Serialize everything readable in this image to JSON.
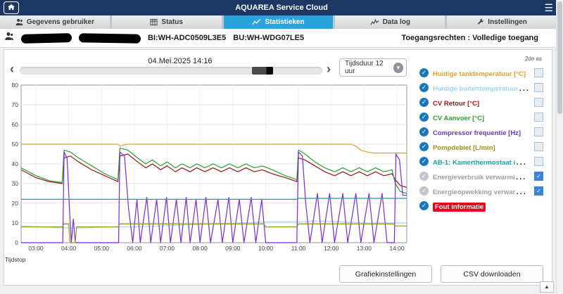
{
  "app": {
    "title": "AQUAREA Service Cloud"
  },
  "icons": {
    "left_arrow": "‹",
    "right_arrow": "›",
    "dropdown": "▾",
    "hamburger": "☰",
    "scroll_top": "▲",
    "check": "✓"
  },
  "tabs": [
    {
      "label": "Gegevens gebruiker",
      "icon": "user-icon",
      "active": false
    },
    {
      "label": "Status",
      "icon": "status-icon",
      "active": false
    },
    {
      "label": "Statistieken",
      "icon": "stats-icon",
      "active": true
    },
    {
      "label": "Data log",
      "icon": "datalog-icon",
      "active": false
    },
    {
      "label": "Instellingen",
      "icon": "settings-icon",
      "active": false
    }
  ],
  "user_row": {
    "bi": "BI:WH-ADC0509L3E5",
    "bu": "BU:WH-WDG07LE5",
    "access": "Toegangsrechten : Volledige toegang"
  },
  "controls": {
    "datetime": "04.Mei.2025 14:16",
    "duration_label": "Tijdsduur 12 uur"
  },
  "legend": {
    "second_axis_header": "2de as",
    "items": [
      {
        "label": "Huidige tanktemperatuur [°C]",
        "color": "#e0a32e",
        "checked": true,
        "axis2": "empty"
      },
      {
        "label": "Huidige buitentemperatuur [°C]",
        "color": "#9fd4f5",
        "checked": true,
        "axis2": "empty"
      },
      {
        "label": "CV Retour [°C]",
        "color": "#9e1414",
        "checked": true,
        "axis2": "empty"
      },
      {
        "label": "CV Aanvoer [°C]",
        "color": "#2f9e2f",
        "checked": true,
        "axis2": "empty"
      },
      {
        "label": "Compressor frequentie [Hz]",
        "color": "#6a35d8",
        "checked": true,
        "axis2": "empty"
      },
      {
        "label": "Pompdebiet [L/min]",
        "color": "#96961e",
        "checked": true,
        "axis2": "empty"
      },
      {
        "label": "AB-1: Kamerthermostaat inter...",
        "color": "#1aa0a8",
        "checked": true,
        "axis2": "empty"
      },
      {
        "label": "Energieverbruik verwarmings...",
        "color": "#9aa0a6",
        "checked": false,
        "axis2": "checked"
      },
      {
        "label": "Energieopwekking verwarming...",
        "color": "#9aa0a6",
        "checked": false,
        "axis2": "checked"
      },
      {
        "label": "Fout informatie",
        "color": "#ffffff",
        "bg": "#e8001d",
        "checked": true,
        "axis2": "none"
      }
    ]
  },
  "buttons": {
    "graph_settings": "Grafiekinstellingen",
    "csv_download": "CSV downloaden"
  },
  "chart_data": {
    "type": "line",
    "title": "",
    "xlabel": "Tijdstop",
    "ylabel": "",
    "xlim": [
      2.55,
      14.3
    ],
    "ylim": [
      0,
      80
    ],
    "y_ticks": [
      0,
      10,
      20,
      30,
      40,
      50,
      60,
      70,
      80
    ],
    "x_tick_hours": [
      3,
      4,
      5,
      6,
      7,
      8,
      9,
      10,
      11,
      12,
      13,
      14
    ],
    "x_ticks": [
      "03:00",
      "04:00",
      "05:00",
      "06:00",
      "07:00",
      "08:00",
      "09:00",
      "10:00",
      "11:00",
      "12:00",
      "13:00",
      "14:00"
    ],
    "grid": true,
    "legend_position": "right",
    "series": [
      {
        "name": "Huidige tanktemperatuur [°C]",
        "color": "#e0a32e",
        "points": [
          [
            2.55,
            50
          ],
          [
            5.5,
            50
          ],
          [
            5.56,
            49
          ],
          [
            5.8,
            50
          ],
          [
            12.6,
            50
          ],
          [
            12.75,
            49
          ],
          [
            12.9,
            47
          ],
          [
            13.1,
            46
          ],
          [
            13.3,
            45.5
          ],
          [
            14.3,
            45.5
          ]
        ]
      },
      {
        "name": "Huidige buitentemperatuur [°C]",
        "color": "#a6d8f7",
        "points": [
          [
            2.55,
            8.5
          ],
          [
            3.2,
            8
          ],
          [
            3.8,
            7.5
          ],
          [
            4.5,
            7.5
          ],
          [
            5.2,
            8
          ],
          [
            6.0,
            8
          ],
          [
            6.8,
            8.5
          ],
          [
            7.6,
            9
          ],
          [
            8.4,
            9.5
          ],
          [
            9.2,
            10
          ],
          [
            10.0,
            10.5
          ],
          [
            10.8,
            10.5
          ],
          [
            11.6,
            11
          ],
          [
            12.4,
            10.5
          ],
          [
            13.2,
            10
          ],
          [
            14.3,
            10
          ]
        ]
      },
      {
        "name": "CV Retour [°C]",
        "color": "#9e1414",
        "points": [
          [
            2.55,
            37
          ],
          [
            3.0,
            33
          ],
          [
            3.4,
            31
          ],
          [
            3.8,
            30
          ],
          [
            3.86,
            43
          ],
          [
            4.05,
            44
          ],
          [
            4.3,
            41
          ],
          [
            4.7,
            37
          ],
          [
            5.1,
            34
          ],
          [
            5.5,
            31
          ],
          [
            5.56,
            44
          ],
          [
            5.8,
            45
          ],
          [
            6.1,
            41
          ],
          [
            6.35,
            38
          ],
          [
            6.55,
            40
          ],
          [
            6.8,
            37
          ],
          [
            7.0,
            39
          ],
          [
            7.25,
            36
          ],
          [
            7.45,
            38
          ],
          [
            7.7,
            36
          ],
          [
            7.9,
            38
          ],
          [
            8.15,
            36
          ],
          [
            8.4,
            38
          ],
          [
            8.65,
            36
          ],
          [
            8.9,
            38
          ],
          [
            9.15,
            36
          ],
          [
            9.4,
            38
          ],
          [
            9.65,
            36
          ],
          [
            9.9,
            37
          ],
          [
            10.2,
            35
          ],
          [
            10.6,
            33
          ],
          [
            10.95,
            31
          ],
          [
            11.0,
            43
          ],
          [
            11.2,
            42
          ],
          [
            11.5,
            39
          ],
          [
            11.8,
            36
          ],
          [
            12.1,
            34
          ],
          [
            12.35,
            36
          ],
          [
            12.6,
            34
          ],
          [
            12.85,
            36
          ],
          [
            13.1,
            34
          ],
          [
            13.35,
            36
          ],
          [
            13.6,
            34
          ],
          [
            13.85,
            35
          ],
          [
            13.95,
            32
          ],
          [
            14.1,
            29
          ],
          [
            14.3,
            28
          ]
        ]
      },
      {
        "name": "CV Aanvoer [°C]",
        "color": "#2f9e2f",
        "points": [
          [
            2.55,
            38
          ],
          [
            3.0,
            34
          ],
          [
            3.4,
            31.5
          ],
          [
            3.8,
            30.5
          ],
          [
            3.86,
            47
          ],
          [
            4.05,
            46
          ],
          [
            4.3,
            43
          ],
          [
            4.7,
            39
          ],
          [
            5.1,
            35
          ],
          [
            5.5,
            32
          ],
          [
            5.56,
            48
          ],
          [
            5.8,
            47
          ],
          [
            6.1,
            43
          ],
          [
            6.35,
            40
          ],
          [
            6.55,
            42
          ],
          [
            6.8,
            39
          ],
          [
            7.0,
            41
          ],
          [
            7.25,
            38
          ],
          [
            7.45,
            40
          ],
          [
            7.7,
            38
          ],
          [
            7.9,
            40
          ],
          [
            8.15,
            38
          ],
          [
            8.4,
            40
          ],
          [
            8.65,
            38
          ],
          [
            8.9,
            40
          ],
          [
            9.15,
            38
          ],
          [
            9.4,
            40
          ],
          [
            9.65,
            38
          ],
          [
            9.9,
            39
          ],
          [
            10.2,
            37
          ],
          [
            10.6,
            34
          ],
          [
            10.95,
            32
          ],
          [
            11.0,
            47
          ],
          [
            11.2,
            45
          ],
          [
            11.5,
            41
          ],
          [
            11.8,
            38
          ],
          [
            12.1,
            36
          ],
          [
            12.35,
            38
          ],
          [
            12.6,
            36
          ],
          [
            12.85,
            38
          ],
          [
            13.1,
            36
          ],
          [
            13.35,
            38
          ],
          [
            13.6,
            36
          ],
          [
            13.85,
            37
          ],
          [
            13.95,
            30
          ],
          [
            14.1,
            26
          ],
          [
            14.3,
            25
          ]
        ]
      },
      {
        "name": "Compressor frequentie [Hz]",
        "color": "#7a2bd9",
        "points": [
          [
            2.55,
            0
          ],
          [
            3.82,
            0
          ],
          [
            3.86,
            46
          ],
          [
            3.95,
            43
          ],
          [
            4.02,
            18
          ],
          [
            4.08,
            0
          ],
          [
            4.14,
            12
          ],
          [
            4.2,
            0
          ],
          [
            5.52,
            0
          ],
          [
            5.56,
            46
          ],
          [
            5.7,
            44
          ],
          [
            5.82,
            18
          ],
          [
            5.95,
            0
          ],
          [
            6.08,
            22
          ],
          [
            6.18,
            0
          ],
          [
            6.38,
            23
          ],
          [
            6.5,
            0
          ],
          [
            6.68,
            22
          ],
          [
            6.8,
            0
          ],
          [
            6.98,
            23
          ],
          [
            7.1,
            0
          ],
          [
            7.28,
            22
          ],
          [
            7.42,
            0
          ],
          [
            7.58,
            23
          ],
          [
            7.7,
            0
          ],
          [
            7.88,
            22
          ],
          [
            8.0,
            0
          ],
          [
            8.18,
            23
          ],
          [
            8.32,
            0
          ],
          [
            8.55,
            22
          ],
          [
            8.68,
            0
          ],
          [
            8.88,
            23
          ],
          [
            9.0,
            0
          ],
          [
            9.2,
            22
          ],
          [
            9.34,
            0
          ],
          [
            9.56,
            23
          ],
          [
            9.7,
            0
          ],
          [
            9.88,
            22
          ],
          [
            10.0,
            0
          ],
          [
            10.95,
            0
          ],
          [
            11.0,
            46
          ],
          [
            11.12,
            44
          ],
          [
            11.22,
            20
          ],
          [
            11.35,
            0
          ],
          [
            11.58,
            25
          ],
          [
            11.72,
            0
          ],
          [
            11.95,
            25
          ],
          [
            12.1,
            0
          ],
          [
            12.35,
            25
          ],
          [
            12.5,
            0
          ],
          [
            12.75,
            25
          ],
          [
            12.9,
            0
          ],
          [
            13.15,
            25
          ],
          [
            13.3,
            0
          ],
          [
            13.55,
            25
          ],
          [
            13.7,
            0
          ],
          [
            13.92,
            0
          ],
          [
            13.97,
            45
          ],
          [
            14.08,
            42
          ],
          [
            14.18,
            24
          ],
          [
            14.3,
            24
          ]
        ]
      },
      {
        "name": "Pompdebiet [L/min]",
        "color": "#96961e",
        "points": [
          [
            2.55,
            8
          ],
          [
            3.8,
            8
          ],
          [
            3.86,
            9.5
          ],
          [
            4.0,
            9.5
          ],
          [
            4.04,
            0
          ],
          [
            4.2,
            0
          ],
          [
            4.24,
            8
          ],
          [
            5.5,
            8
          ],
          [
            5.56,
            9.5
          ],
          [
            9.95,
            9.5
          ],
          [
            10.0,
            8
          ],
          [
            10.95,
            8
          ],
          [
            11.0,
            9.5
          ],
          [
            13.9,
            9.5
          ],
          [
            13.95,
            8.5
          ],
          [
            14.3,
            8.5
          ]
        ]
      },
      {
        "name": "AB-1: Kamerthermostaat inter...",
        "color": "#1aa0a8",
        "points": [
          [
            2.55,
            22
          ],
          [
            10.95,
            22
          ],
          [
            11.0,
            22.5
          ],
          [
            14.3,
            22.5
          ]
        ]
      }
    ]
  }
}
